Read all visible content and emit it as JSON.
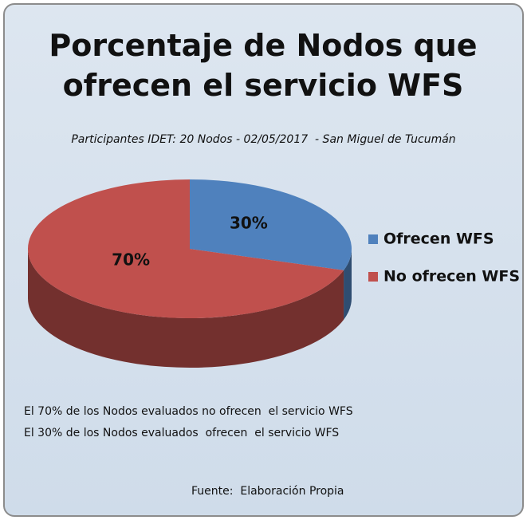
{
  "chart_data": {
    "type": "pie",
    "title": "Porcentaje de Nodos que ofrecen el servicio WFS",
    "subtitle": "Participantes IDET: 20 Nodos - 02/05/2017  - San Miguel de Tucumán",
    "categories": [
      "Ofrecen WFS",
      "No ofrecen WFS"
    ],
    "series": [
      {
        "name": "Nodos",
        "colors": [
          "#4f81bd",
          "#c0504d"
        ],
        "values": [
          30,
          70
        ],
        "value_labels": [
          "30%",
          "70%"
        ]
      }
    ],
    "legend": "right",
    "annotations": [
      "El 70% de los Nodos evaluados no ofrecen  el servicio WFS",
      "El 30% de los Nodos evaluados  ofrecen  el servicio WFS",
      "Fuente:  Elaboración Propia"
    ]
  }
}
